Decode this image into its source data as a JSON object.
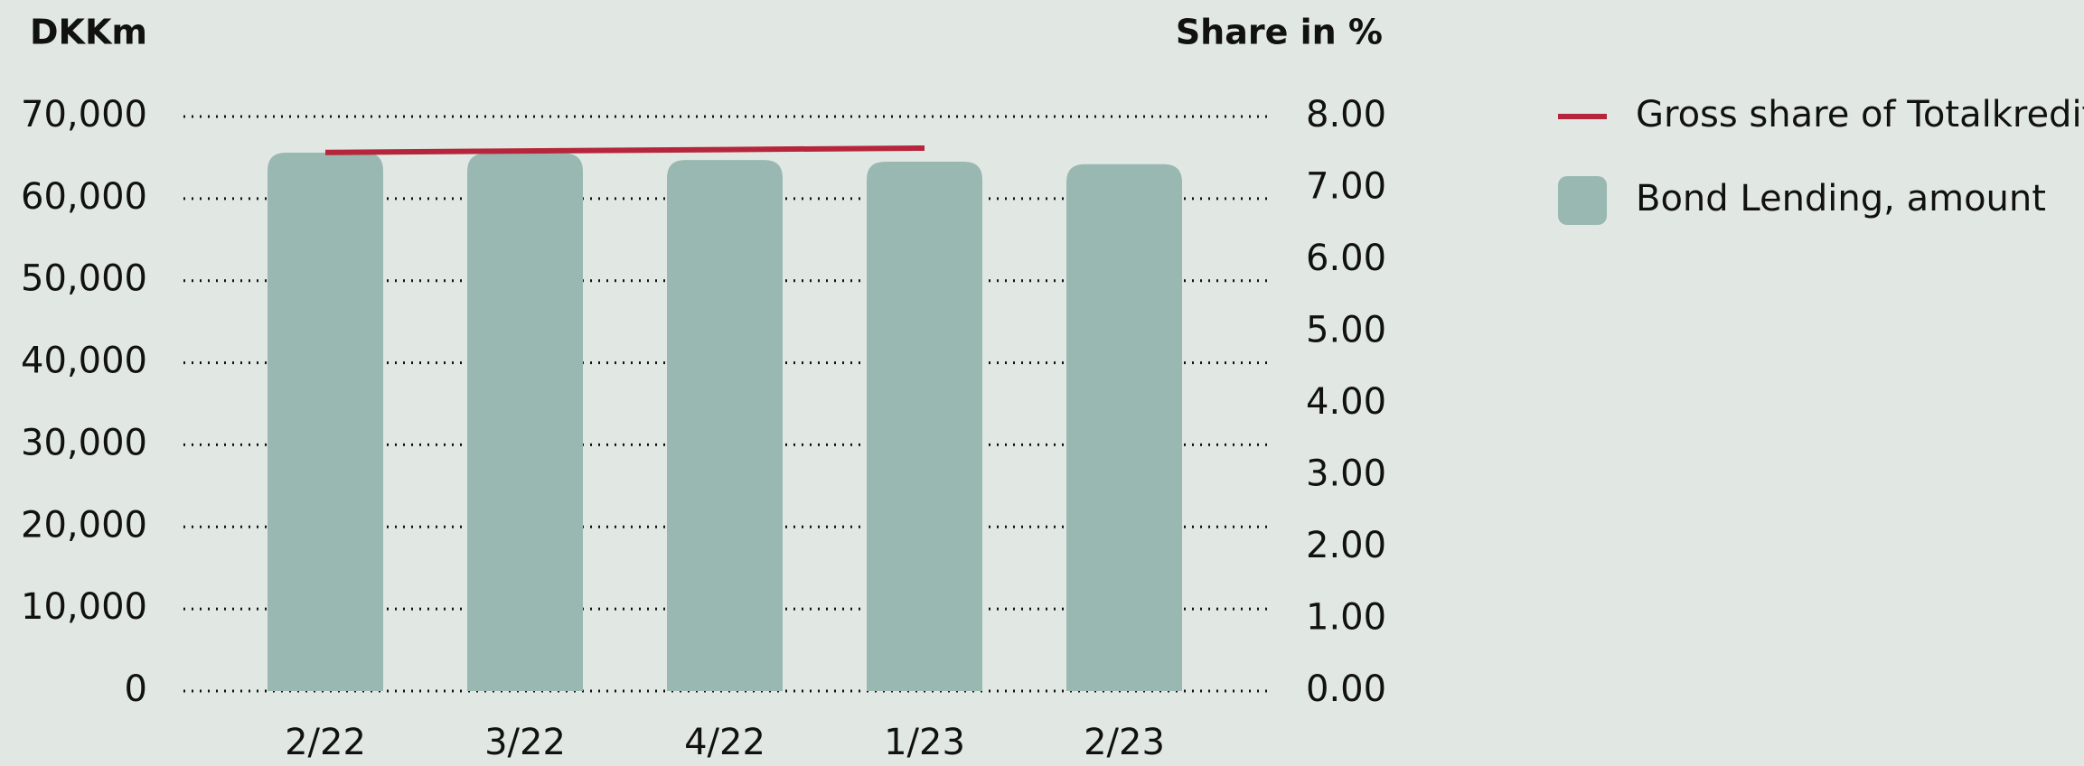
{
  "chart_data": {
    "type": "bar",
    "y_label": "DKKm",
    "y2_label": "Share in %",
    "categories": [
      "2/22",
      "3/22",
      "4/22",
      "1/23",
      "2/23"
    ],
    "series": [
      {
        "name": "Bond Lending, amount",
        "type": "bar",
        "color": "#99b8b1",
        "values": [
          65600,
          65500,
          64700,
          64500,
          64200
        ]
      },
      {
        "name": "Gross share of Totalkredit",
        "type": "line",
        "axis": "y2",
        "color": "#b5253b",
        "values": [
          7.5,
          7.52,
          7.54,
          7.56,
          null
        ]
      }
    ],
    "ylim": [
      0,
      70000
    ],
    "yticks": [
      0,
      {
        "value": 10000,
        "label": "10,000"
      },
      {
        "value": 20000,
        "label": "20,000"
      },
      {
        "value": 30000,
        "label": "30,000"
      },
      {
        "value": 40000,
        "label": "40,000"
      },
      {
        "value": 50000,
        "label": "50,000"
      },
      {
        "value": 60000,
        "label": "60,000"
      },
      {
        "value": 70000,
        "label": "70,000"
      }
    ],
    "y2lim": [
      0,
      8
    ],
    "y2ticks": [
      {
        "value": 0,
        "label": "0.00"
      },
      {
        "value": 1,
        "label": "1.00"
      },
      {
        "value": 2,
        "label": "2.00"
      },
      {
        "value": 3,
        "label": "3.00"
      },
      {
        "value": 4,
        "label": "4.00"
      },
      {
        "value": 5,
        "label": "5.00"
      },
      {
        "value": 6,
        "label": "6.00"
      },
      {
        "value": 7,
        "label": "7.00"
      },
      {
        "value": 8,
        "label": "8.00"
      }
    ],
    "grid": true
  }
}
